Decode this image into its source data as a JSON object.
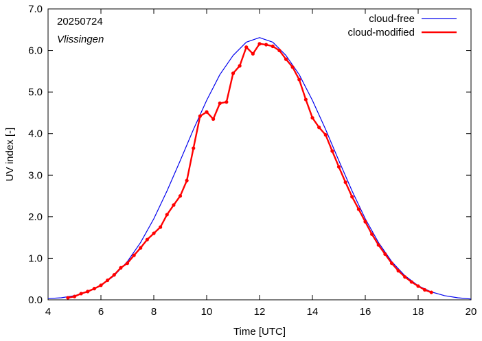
{
  "chart_data": {
    "type": "line",
    "annotations": [
      "20250724",
      "Vlissingen"
    ],
    "xlabel": "Time  [UTC]",
    "ylabel": "UV index  [-]",
    "xlim": [
      4,
      20
    ],
    "ylim": [
      0,
      7
    ],
    "x_ticks": [
      4,
      6,
      8,
      10,
      12,
      14,
      16,
      18,
      20
    ],
    "x_tick_labels": [
      "4",
      "6",
      "8",
      "10",
      "12",
      "14",
      "16",
      "18",
      "20"
    ],
    "y_ticks": [
      0,
      1,
      2,
      3,
      4,
      5,
      6,
      7
    ],
    "y_tick_labels": [
      "0.0",
      "1.0",
      "2.0",
      "3.0",
      "4.0",
      "5.0",
      "6.0",
      "7.0"
    ],
    "grid": false,
    "legend_position": "top-right",
    "series": [
      {
        "name": "cloud-free",
        "color": "#0000ee",
        "markers": false,
        "points": [
          [
            4.0,
            0.03
          ],
          [
            4.5,
            0.05
          ],
          [
            5.0,
            0.1
          ],
          [
            5.5,
            0.19
          ],
          [
            6.0,
            0.34
          ],
          [
            6.5,
            0.58
          ],
          [
            7.0,
            0.92
          ],
          [
            7.5,
            1.38
          ],
          [
            8.0,
            1.95
          ],
          [
            8.5,
            2.62
          ],
          [
            9.0,
            3.35
          ],
          [
            9.5,
            4.1
          ],
          [
            10.0,
            4.8
          ],
          [
            10.5,
            5.42
          ],
          [
            11.0,
            5.88
          ],
          [
            11.5,
            6.2
          ],
          [
            12.0,
            6.31
          ],
          [
            12.5,
            6.2
          ],
          [
            13.0,
            5.88
          ],
          [
            13.5,
            5.42
          ],
          [
            14.0,
            4.8
          ],
          [
            14.5,
            4.1
          ],
          [
            15.0,
            3.35
          ],
          [
            15.5,
            2.62
          ],
          [
            16.0,
            1.95
          ],
          [
            16.5,
            1.38
          ],
          [
            17.0,
            0.92
          ],
          [
            17.5,
            0.58
          ],
          [
            18.0,
            0.34
          ],
          [
            18.5,
            0.19
          ],
          [
            19.0,
            0.1
          ],
          [
            19.5,
            0.05
          ],
          [
            20.0,
            0.02
          ]
        ]
      },
      {
        "name": "cloud-modified",
        "color": "#ff0000",
        "markers": true,
        "points": [
          [
            4.75,
            0.05
          ],
          [
            5.0,
            0.08
          ],
          [
            5.25,
            0.15
          ],
          [
            5.5,
            0.2
          ],
          [
            5.75,
            0.27
          ],
          [
            6.0,
            0.35
          ],
          [
            6.25,
            0.47
          ],
          [
            6.5,
            0.6
          ],
          [
            6.75,
            0.77
          ],
          [
            7.0,
            0.88
          ],
          [
            7.25,
            1.07
          ],
          [
            7.5,
            1.25
          ],
          [
            7.75,
            1.45
          ],
          [
            8.0,
            1.6
          ],
          [
            8.25,
            1.75
          ],
          [
            8.5,
            2.05
          ],
          [
            8.75,
            2.28
          ],
          [
            9.0,
            2.5
          ],
          [
            9.25,
            2.87
          ],
          [
            9.5,
            3.65
          ],
          [
            9.75,
            4.42
          ],
          [
            10.0,
            4.52
          ],
          [
            10.25,
            4.35
          ],
          [
            10.5,
            4.73
          ],
          [
            10.75,
            4.76
          ],
          [
            11.0,
            5.45
          ],
          [
            11.25,
            5.63
          ],
          [
            11.5,
            6.08
          ],
          [
            11.75,
            5.92
          ],
          [
            12.0,
            6.16
          ],
          [
            12.25,
            6.14
          ],
          [
            12.5,
            6.1
          ],
          [
            12.75,
            6.0
          ],
          [
            13.0,
            5.79
          ],
          [
            13.25,
            5.6
          ],
          [
            13.5,
            5.3
          ],
          [
            13.75,
            4.82
          ],
          [
            14.0,
            4.38
          ],
          [
            14.25,
            4.15
          ],
          [
            14.5,
            3.97
          ],
          [
            14.75,
            3.58
          ],
          [
            15.0,
            3.2
          ],
          [
            15.25,
            2.83
          ],
          [
            15.5,
            2.48
          ],
          [
            15.75,
            2.18
          ],
          [
            16.0,
            1.88
          ],
          [
            16.25,
            1.58
          ],
          [
            16.5,
            1.32
          ],
          [
            16.75,
            1.1
          ],
          [
            17.0,
            0.88
          ],
          [
            17.25,
            0.7
          ],
          [
            17.5,
            0.55
          ],
          [
            17.75,
            0.43
          ],
          [
            18.0,
            0.33
          ],
          [
            18.25,
            0.24
          ],
          [
            18.5,
            0.18
          ]
        ]
      }
    ]
  }
}
